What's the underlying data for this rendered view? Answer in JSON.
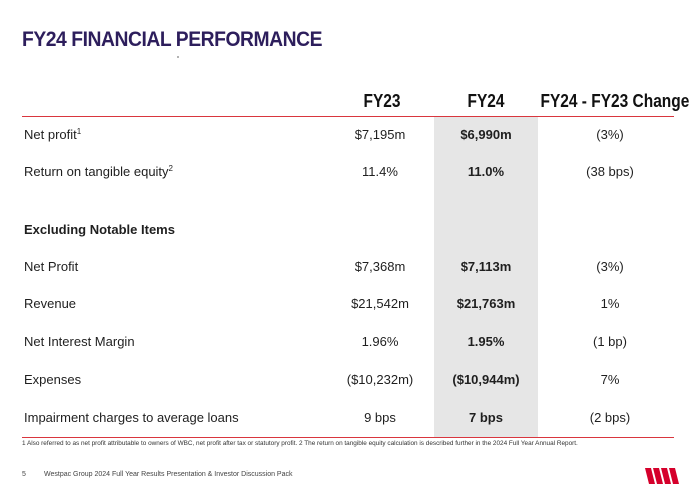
{
  "title": "FY24 FINANCIAL PERFORMANCE",
  "columns": {
    "fy23": "FY23",
    "fy24": "FY24",
    "change": "FY24 - FY23 Change"
  },
  "rows": [
    {
      "label": "Net profit",
      "sup": "1",
      "fy23": "$7,195m",
      "fy24": "$6,990m",
      "change": "(3%)"
    },
    {
      "label": "Return on tangible equity",
      "sup": "2",
      "fy23": "11.4%",
      "fy24": "11.0%",
      "change": "(38 bps)"
    }
  ],
  "section_title": "Excluding Notable Items",
  "notable_rows": [
    {
      "label": "Net Profit",
      "fy23": "$7,368m",
      "fy24": "$7,113m",
      "change": "(3%)"
    },
    {
      "label": "Revenue",
      "fy23": "$21,542m",
      "fy24": "$21,763m",
      "change": "1%"
    },
    {
      "label": "Net Interest Margin",
      "fy23": "1.96%",
      "fy24": "1.95%",
      "change": "(1 bp)"
    },
    {
      "label": "Expenses",
      "fy23": "($10,232m)",
      "fy24": "($10,944m)",
      "change": "7%"
    },
    {
      "label": "Impairment charges to average loans",
      "fy23": "9 bps",
      "fy24": "7 bps",
      "change": "(2 bps)"
    }
  ],
  "footnote": "1 Also referred to as net profit attributable to owners of WBC, net profit after tax or statutory profit. 2 The return on tangible equity calculation is described further in the 2024 Full Year Annual Report.",
  "footer": {
    "page": "5",
    "text": "Westpac Group 2024 Full Year Results Presentation & Investor Discussion Pack"
  },
  "colors": {
    "brand_red": "#d5002b",
    "title_navy": "#2d1e5c",
    "rule_red": "#d9363e",
    "highlight_grey": "#e6e6e6"
  },
  "logo": "westpac-w-logo-icon"
}
